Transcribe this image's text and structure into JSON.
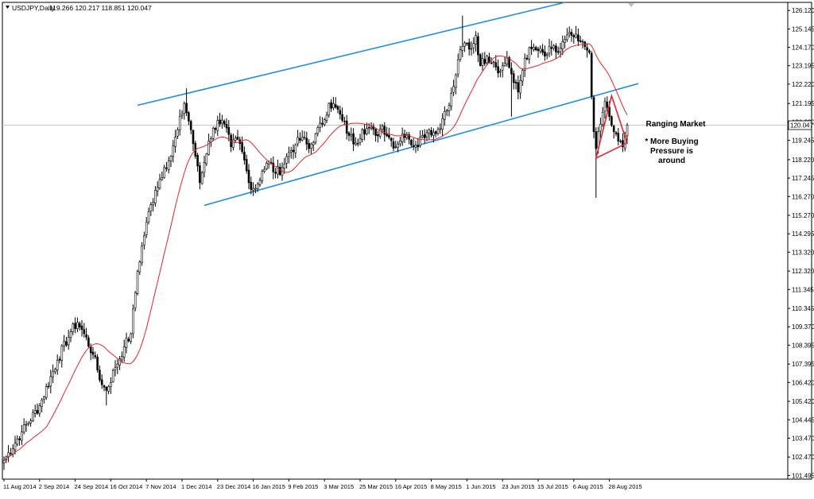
{
  "header": {
    "symbol_timeframe": "USDJPY,Daily",
    "ohlc_text": "119.266 120.217 118.851 120.047"
  },
  "colors": {
    "bull": "#000000",
    "bear": "#000000",
    "ma": "#e8242b",
    "channel": "#1e8fe6",
    "triangle": "#e8242b",
    "price_line": "#c8c8c8",
    "background": "#ffffff",
    "frame": "#000000"
  },
  "chart_data": {
    "type": "candlestick",
    "title": "USDJPY,Daily",
    "y_ticks": [
      126.12,
      125.145,
      124.17,
      123.195,
      122.22,
      121.195,
      120.22,
      119.245,
      118.22,
      117.245,
      116.27,
      115.27,
      114.295,
      113.32,
      112.32,
      111.345,
      110.345,
      109.37,
      108.395,
      107.395,
      106.42,
      105.42,
      104.445,
      103.47,
      102.47,
      101.495
    ],
    "y_tick_labels": [
      "126.120",
      "125.145",
      "124.170",
      "123.195",
      "122.220",
      "121.195",
      "120.220",
      "119.245",
      "118.220",
      "117.245",
      "116.270",
      "115.270",
      "114.295",
      "113.320",
      "112.320",
      "111.345",
      "110.345",
      "109.370",
      "108.395",
      "107.395",
      "106.420",
      "105.420",
      "104.445",
      "103.470",
      "102.470",
      "101.495"
    ],
    "ylim": [
      101.3,
      126.55
    ],
    "x_tick_labels": [
      "11 Aug 2014",
      "2 Sep 2014",
      "24 Sep 2014",
      "16 Oct 2014",
      "7 Nov 2014",
      "1 Dec 2014",
      "23 Dec 2014",
      "16 Jan 2015",
      "9 Feb 2015",
      "3 Mar 2015",
      "25 Mar 2015",
      "16 Apr 2015",
      "8 May 2015",
      "1 Jun 2015",
      "23 Jun 2015",
      "15 Jul 2015",
      "6 Aug 2015",
      "28 Aug 2015"
    ],
    "x_tick_bars": [
      0,
      16,
      32,
      48,
      64,
      80,
      96,
      112,
      128,
      144,
      160,
      176,
      192,
      208,
      224,
      240,
      256,
      272
    ],
    "current_price": 120.047,
    "current_price_label": "120.047",
    "close_anchors": [
      [
        0,
        102.3
      ],
      [
        8,
        103.8
      ],
      [
        16,
        105.2
      ],
      [
        24,
        107.6
      ],
      [
        30,
        109.1
      ],
      [
        33,
        109.6
      ],
      [
        36,
        109.0
      ],
      [
        40,
        107.9
      ],
      [
        44,
        106.3
      ],
      [
        46,
        106.0
      ],
      [
        50,
        107.2
      ],
      [
        54,
        108.3
      ],
      [
        57,
        109.0
      ],
      [
        60,
        112.3
      ],
      [
        64,
        114.9
      ],
      [
        68,
        116.6
      ],
      [
        72,
        117.8
      ],
      [
        75,
        118.4
      ],
      [
        78,
        119.8
      ],
      [
        81,
        121.2
      ],
      [
        84,
        119.8
      ],
      [
        86,
        118.4
      ],
      [
        88,
        117.0
      ],
      [
        92,
        119.2
      ],
      [
        96,
        120.3
      ],
      [
        99,
        120.1
      ],
      [
        102,
        118.9
      ],
      [
        105,
        119.3
      ],
      [
        108,
        118.2
      ],
      [
        110,
        117.0
      ],
      [
        113,
        116.7
      ],
      [
        116,
        117.6
      ],
      [
        119,
        118.1
      ],
      [
        122,
        117.5
      ],
      [
        125,
        117.8
      ],
      [
        128,
        118.6
      ],
      [
        131,
        119.0
      ],
      [
        134,
        119.4
      ],
      [
        137,
        118.8
      ],
      [
        140,
        119.6
      ],
      [
        143,
        120.1
      ],
      [
        146,
        121.2
      ],
      [
        149,
        121.0
      ],
      [
        152,
        120.3
      ],
      [
        155,
        119.5
      ],
      [
        158,
        119.1
      ],
      [
        161,
        119.8
      ],
      [
        164,
        119.9
      ],
      [
        167,
        119.5
      ],
      [
        170,
        120.0
      ],
      [
        173,
        119.4
      ],
      [
        176,
        118.9
      ],
      [
        179,
        119.6
      ],
      [
        182,
        119.3
      ],
      [
        185,
        119.0
      ],
      [
        188,
        119.5
      ],
      [
        191,
        119.8
      ],
      [
        194,
        119.6
      ],
      [
        197,
        120.4
      ],
      [
        200,
        121.1
      ],
      [
        202,
        122.1
      ],
      [
        204,
        123.5
      ],
      [
        207,
        124.4
      ],
      [
        210,
        124.1
      ],
      [
        212,
        124.8
      ],
      [
        214,
        123.2
      ],
      [
        217,
        123.7
      ],
      [
        220,
        123.4
      ],
      [
        223,
        122.9
      ],
      [
        226,
        123.6
      ],
      [
        229,
        122.3
      ],
      [
        231,
        121.8
      ],
      [
        234,
        123.6
      ],
      [
        237,
        124.1
      ],
      [
        240,
        124.0
      ],
      [
        243,
        123.7
      ],
      [
        246,
        124.1
      ],
      [
        249,
        123.9
      ],
      [
        252,
        124.6
      ],
      [
        255,
        124.8
      ],
      [
        258,
        124.5
      ],
      [
        261,
        124.2
      ],
      [
        263,
        123.9
      ],
      [
        265,
        119.7
      ],
      [
        266,
        118.8
      ],
      [
        268,
        120.1
      ],
      [
        270,
        121.3
      ],
      [
        272,
        120.5
      ],
      [
        274,
        119.7
      ],
      [
        276,
        119.2
      ],
      [
        278,
        118.9
      ],
      [
        280,
        120.047
      ]
    ],
    "extremes": [
      {
        "bar": 46,
        "low": 105.2
      },
      {
        "bar": 82,
        "high": 122.0
      },
      {
        "bar": 112,
        "low": 116.3
      },
      {
        "bar": 206,
        "high": 125.85
      },
      {
        "bar": 228,
        "low": 120.5
      },
      {
        "bar": 257,
        "high": 125.3
      },
      {
        "bar": 266,
        "low": 116.2
      }
    ],
    "ma_period": 20,
    "channel_upper": [
      [
        60,
        121.1
      ],
      [
        252,
        126.55
      ]
    ],
    "channel_lower": [
      [
        90,
        115.8
      ],
      [
        285,
        122.25
      ]
    ],
    "triangle": [
      [
        266,
        118.3
      ],
      [
        273,
        121.6
      ],
      [
        280,
        119.1
      ]
    ],
    "annotations": {
      "title": "Ranging Market",
      "body_lines": [
        "* More Buying",
        "Pressure is",
        "around"
      ]
    }
  }
}
